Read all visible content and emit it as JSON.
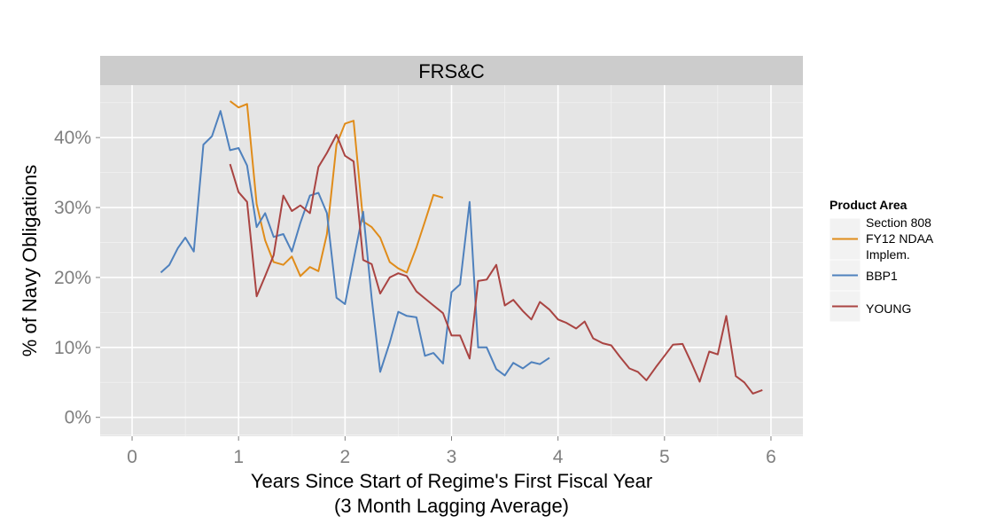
{
  "chart_data": {
    "type": "line",
    "facet_label": "FRS&C",
    "xlabel_line1": "Years Since Start of Regime's First Fiscal Year",
    "xlabel_line2": "(3 Month Lagging Average)",
    "ylabel": "% of Navy Obligations",
    "xlim": [
      -0.3,
      6.3
    ],
    "ylim": [
      -0.027,
      0.475
    ],
    "x_ticks": [
      0,
      1,
      2,
      3,
      4,
      5,
      6
    ],
    "x_tick_labels": [
      "0",
      "1",
      "2",
      "3",
      "4",
      "5",
      "6"
    ],
    "y_ticks": [
      0,
      0.1,
      0.2,
      0.3,
      0.4
    ],
    "y_tick_labels": [
      "0%",
      "10%",
      "20%",
      "30%",
      "40%"
    ],
    "grid": true,
    "legend_position": "right",
    "legend_title": "Product Area",
    "series": [
      {
        "name": "Section 808 FY12 NDAA Implem.",
        "legend_lines": [
          "Section 808",
          "FY12 NDAA",
          "Implem."
        ],
        "color": "#E08C1A",
        "x": [
          0.92,
          1.0,
          1.08,
          1.17,
          1.25,
          1.33,
          1.42,
          1.5,
          1.58,
          1.67,
          1.75,
          1.83,
          1.92,
          2.0,
          2.08,
          2.17,
          2.25,
          2.33,
          2.42,
          2.5,
          2.58,
          2.67,
          2.75,
          2.83,
          2.92
        ],
        "y": [
          0.452,
          0.443,
          0.448,
          0.305,
          0.253,
          0.222,
          0.218,
          0.23,
          0.202,
          0.215,
          0.209,
          0.262,
          0.39,
          0.42,
          0.424,
          0.28,
          0.272,
          0.257,
          0.222,
          0.213,
          0.207,
          0.243,
          0.28,
          0.318,
          0.314
        ]
      },
      {
        "name": "BBP1",
        "legend_lines": [
          "BBP1"
        ],
        "color": "#4F81BD",
        "x": [
          0.27,
          0.35,
          0.43,
          0.5,
          0.58,
          0.67,
          0.75,
          0.83,
          0.92,
          1.0,
          1.08,
          1.17,
          1.25,
          1.33,
          1.42,
          1.5,
          1.58,
          1.67,
          1.75,
          1.83,
          1.92,
          2.0,
          2.08,
          2.17,
          2.25,
          2.33,
          2.42,
          2.5,
          2.58,
          2.67,
          2.75,
          2.83,
          2.92,
          3.0,
          3.08,
          3.17,
          3.25,
          3.33,
          3.42,
          3.5,
          3.58,
          3.67,
          3.75,
          3.83,
          3.92
        ],
        "y": [
          0.207,
          0.218,
          0.242,
          0.257,
          0.237,
          0.39,
          0.402,
          0.438,
          0.382,
          0.385,
          0.36,
          0.272,
          0.292,
          0.258,
          0.262,
          0.237,
          0.278,
          0.317,
          0.321,
          0.292,
          0.171,
          0.162,
          0.225,
          0.294,
          0.17,
          0.065,
          0.107,
          0.151,
          0.145,
          0.143,
          0.088,
          0.092,
          0.077,
          0.179,
          0.19,
          0.308,
          0.1,
          0.1,
          0.069,
          0.06,
          0.078,
          0.07,
          0.079,
          0.076,
          0.085
        ]
      },
      {
        "name": "YOUNG",
        "legend_lines": [
          "YOUNG"
        ],
        "color": "#A94442",
        "x": [
          0.92,
          1.0,
          1.08,
          1.17,
          1.25,
          1.33,
          1.42,
          1.5,
          1.58,
          1.67,
          1.75,
          1.83,
          1.92,
          2.0,
          2.08,
          2.17,
          2.25,
          2.33,
          2.42,
          2.5,
          2.58,
          2.67,
          2.75,
          2.83,
          2.92,
          3.0,
          3.08,
          3.17,
          3.25,
          3.33,
          3.42,
          3.5,
          3.58,
          3.67,
          3.75,
          3.83,
          3.92,
          4.0,
          4.08,
          4.17,
          4.25,
          4.33,
          4.42,
          4.5,
          4.58,
          4.67,
          4.75,
          4.83,
          4.92,
          5.0,
          5.08,
          5.17,
          5.25,
          5.33,
          5.42,
          5.5,
          5.58,
          5.67,
          5.75,
          5.83,
          5.92
        ],
        "y": [
          0.362,
          0.322,
          0.308,
          0.173,
          0.202,
          0.232,
          0.317,
          0.295,
          0.303,
          0.292,
          0.358,
          0.378,
          0.404,
          0.374,
          0.366,
          0.225,
          0.219,
          0.177,
          0.2,
          0.206,
          0.202,
          0.18,
          0.17,
          0.16,
          0.149,
          0.117,
          0.117,
          0.084,
          0.195,
          0.197,
          0.218,
          0.16,
          0.168,
          0.152,
          0.14,
          0.165,
          0.154,
          0.14,
          0.135,
          0.127,
          0.137,
          0.113,
          0.106,
          0.103,
          0.087,
          0.07,
          0.065,
          0.053,
          0.072,
          0.088,
          0.104,
          0.105,
          0.079,
          0.051,
          0.094,
          0.09,
          0.145,
          0.059,
          0.05,
          0.034,
          0.039
        ]
      }
    ]
  }
}
